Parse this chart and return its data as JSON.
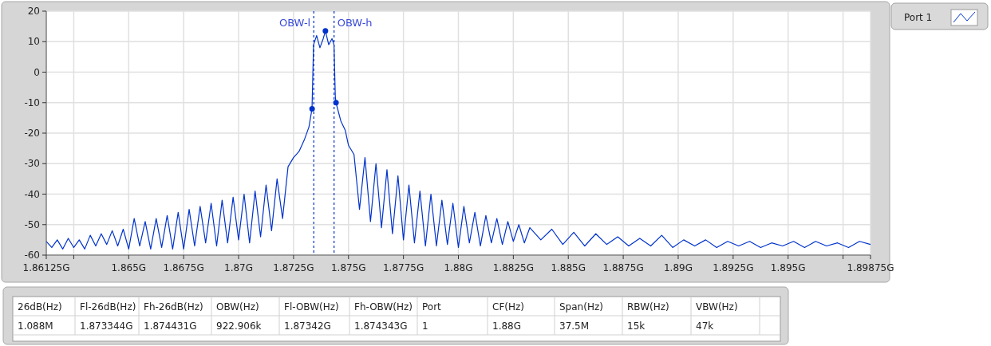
{
  "chart_data": {
    "type": "line",
    "x": [
      1.86125,
      1.8615,
      1.86175,
      1.862,
      1.86225,
      1.8625,
      1.86275,
      1.863,
      1.86325,
      1.8635,
      1.86375,
      1.864,
      1.86425,
      1.8645,
      1.86475,
      1.865,
      1.86525,
      1.8655,
      1.86575,
      1.866,
      1.86625,
      1.8665,
      1.86675,
      1.867,
      1.86725,
      1.8675,
      1.86775,
      1.868,
      1.86825,
      1.8685,
      1.86875,
      1.869,
      1.86925,
      1.8695,
      1.86975,
      1.87,
      1.87025,
      1.8705,
      1.87075,
      1.871,
      1.87125,
      1.8715,
      1.87175,
      1.872,
      1.87225,
      1.8725,
      1.87275,
      1.873,
      1.8732,
      1.87334,
      1.87341,
      1.87355,
      1.8737,
      1.87385,
      1.87395,
      1.8741,
      1.87425,
      1.87434,
      1.8744,
      1.87443,
      1.87465,
      1.87485,
      1.875,
      1.87525,
      1.8755,
      1.87575,
      1.876,
      1.87625,
      1.8765,
      1.87675,
      1.877,
      1.87725,
      1.8775,
      1.87775,
      1.878,
      1.87825,
      1.8785,
      1.87875,
      1.879,
      1.87925,
      1.8795,
      1.87975,
      1.88,
      1.88025,
      1.8805,
      1.88075,
      1.881,
      1.88125,
      1.8815,
      1.88175,
      1.882,
      1.88225,
      1.8825,
      1.88275,
      1.883,
      1.88325,
      1.88375,
      1.88425,
      1.88475,
      1.88525,
      1.88575,
      1.88625,
      1.88675,
      1.88725,
      1.88775,
      1.88825,
      1.88875,
      1.88925,
      1.88975,
      1.89025,
      1.89075,
      1.89125,
      1.89175,
      1.89225,
      1.89275,
      1.89325,
      1.89375,
      1.89425,
      1.89475,
      1.89525,
      1.89575,
      1.89625,
      1.89675,
      1.89725,
      1.89775,
      1.89825,
      1.89875
    ],
    "series": [
      {
        "name": "Port 1",
        "color": "#0033cc",
        "values": [
          -55.5,
          -57.5,
          -55,
          -58,
          -54.5,
          -57.5,
          -55,
          -58,
          -53.5,
          -57,
          -53,
          -56.5,
          -52,
          -57,
          -51.5,
          -58,
          -48,
          -57,
          -49,
          -58,
          -48,
          -57.5,
          -47,
          -58,
          -46,
          -58,
          -45,
          -57,
          -44,
          -56,
          -43,
          -57,
          -42,
          -56,
          -41,
          -55,
          -40,
          -56,
          -39,
          -54,
          -37,
          -52,
          -35,
          -48,
          -31,
          -28,
          -26,
          -22,
          -18,
          -12,
          9,
          12,
          8,
          11,
          13.5,
          9,
          11,
          9,
          -8,
          -10,
          -16,
          -19,
          -24,
          -27,
          -45,
          -28,
          -49,
          -30,
          -51,
          -32,
          -53,
          -34,
          -55,
          -37,
          -56,
          -39,
          -57,
          -40,
          -57,
          -42,
          -56.5,
          -43,
          -57.5,
          -44,
          -56,
          -46,
          -57,
          -47,
          -56,
          -48,
          -56.5,
          -49,
          -55.5,
          -50,
          -56,
          -51,
          -55,
          -51.5,
          -56.5,
          -52.5,
          -57,
          -53,
          -56.5,
          -54,
          -57,
          -54.5,
          -57,
          -53.5,
          -57.5,
          -55,
          -57,
          -55,
          -57.5,
          -55.5,
          -57,
          -55.5,
          -57.5,
          -56,
          -57,
          -55.5,
          -57.5,
          -55.5,
          -57,
          -56,
          -57.5,
          -55.5,
          -56.5
        ]
      },
      {
        "type": "scatter",
        "color": "#0033cc",
        "marker": "circle",
        "x": [
          1.873344,
          1.87395,
          1.874431
        ],
        "values": [
          -12,
          13.5,
          -10
        ]
      }
    ],
    "xlim": [
      1.86125,
      1.89875
    ],
    "xticks": [
      {
        "value": 1.86125,
        "label": "1.86125G"
      },
      {
        "value": 1.8625,
        "label": null
      },
      {
        "value": 1.865,
        "label": "1.865G"
      },
      {
        "value": 1.8675,
        "label": "1.8675G"
      },
      {
        "value": 1.87,
        "label": "1.87G"
      },
      {
        "value": 1.8725,
        "label": "1.8725G"
      },
      {
        "value": 1.875,
        "label": "1.875G"
      },
      {
        "value": 1.8775,
        "label": "1.8775G"
      },
      {
        "value": 1.88,
        "label": "1.88G"
      },
      {
        "value": 1.8825,
        "label": "1.8825G"
      },
      {
        "value": 1.885,
        "label": "1.885G"
      },
      {
        "value": 1.8875,
        "label": "1.8875G"
      },
      {
        "value": 1.89,
        "label": "1.89G"
      },
      {
        "value": 1.8925,
        "label": "1.8925G"
      },
      {
        "value": 1.895,
        "label": "1.895G"
      },
      {
        "value": 1.8975,
        "label": null
      },
      {
        "value": 1.89875,
        "label": "1.89875G"
      }
    ],
    "ylim": [
      -60,
      20
    ],
    "yticks": [
      -60,
      -50,
      -40,
      -30,
      -20,
      -10,
      0,
      10,
      20
    ],
    "grid": true,
    "legend": "top right",
    "line_style": "solid",
    "ref_lines": [
      {
        "axis": "x",
        "value": 1.87342,
        "label": "OBW-l",
        "color": "#0033cc",
        "line_style": "dashed"
      },
      {
        "axis": "x",
        "value": 1.874343,
        "label": "OBW-h",
        "color": "#0033cc",
        "line_style": "dashed"
      }
    ],
    "annotations": [
      "26dB(Hz)",
      "Fl-26dB(Hz)",
      "Fh-26dB(Hz)",
      "OBW(Hz)",
      "Fl-OBW(Hz)",
      "Fh-OBW(Hz)",
      "Port",
      "CF(Hz)",
      "Span(Hz)",
      "RBW(Hz)",
      "VBW(Hz)",
      "1.088M",
      "1.873344G",
      "1.874431G",
      "922.906k",
      "1.87342G",
      "1.874343G",
      "1",
      "1.88G",
      "37.5M",
      "15k",
      "47k"
    ]
  }
}
